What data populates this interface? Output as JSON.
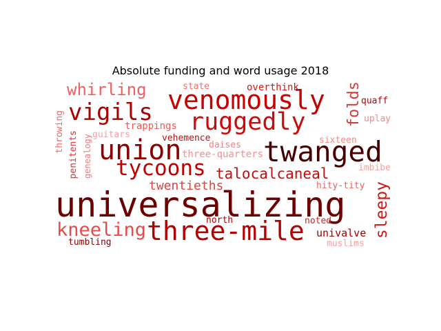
{
  "title": "Absolute funding and word usage 2018",
  "words": [
    {
      "text": "universalizing",
      "color": "#6b0000"
    },
    {
      "text": "three-mile",
      "color": "#b30000"
    },
    {
      "text": "twanged",
      "color": "#470000"
    },
    {
      "text": "venomously",
      "color": "#c80000"
    },
    {
      "text": "union",
      "color": "#8b0000"
    },
    {
      "text": "ruggedly",
      "color": "#cc0a0a"
    },
    {
      "text": "vigils",
      "color": "#ab0000"
    },
    {
      "text": "tycoons",
      "color": "#c00000"
    },
    {
      "text": "kneeling",
      "color": "#e84a4a"
    },
    {
      "text": "whirling",
      "color": "#f06060"
    },
    {
      "text": "talocalcaneal",
      "color": "#c21010"
    },
    {
      "text": "sleepy",
      "color": "#d01818"
    },
    {
      "text": "folds",
      "color": "#d83a3a"
    },
    {
      "text": "twentieths",
      "color": "#e04040"
    },
    {
      "text": "univalve",
      "color": "#a00000"
    },
    {
      "text": "overthink",
      "color": "#cc1a1a"
    },
    {
      "text": "quaff",
      "color": "#c00000"
    },
    {
      "text": "trappings",
      "color": "#ee5a5a"
    },
    {
      "text": "vehemence",
      "color": "#b81010"
    },
    {
      "text": "three-quarters",
      "color": "#f59090"
    },
    {
      "text": "daises",
      "color": "#f08080"
    },
    {
      "text": "state",
      "color": "#f07070"
    },
    {
      "text": "north",
      "color": "#b00000"
    },
    {
      "text": "noted",
      "color": "#d81c1c"
    },
    {
      "text": "tumbling",
      "color": "#8b0000"
    },
    {
      "text": "muslims",
      "color": "#f8a0a0"
    },
    {
      "text": "hity-tity",
      "color": "#f06060"
    },
    {
      "text": "sixteen",
      "color": "#f58a8a"
    },
    {
      "text": "uplay",
      "color": "#f48a8a"
    },
    {
      "text": "imbibe",
      "color": "#f8a0a0"
    },
    {
      "text": "guitars",
      "color": "#f8a0a0"
    },
    {
      "text": "penitents",
      "color": "#e03030"
    },
    {
      "text": "genealogy",
      "color": "#f07878"
    },
    {
      "text": "throwing",
      "color": "#f06868"
    }
  ]
}
